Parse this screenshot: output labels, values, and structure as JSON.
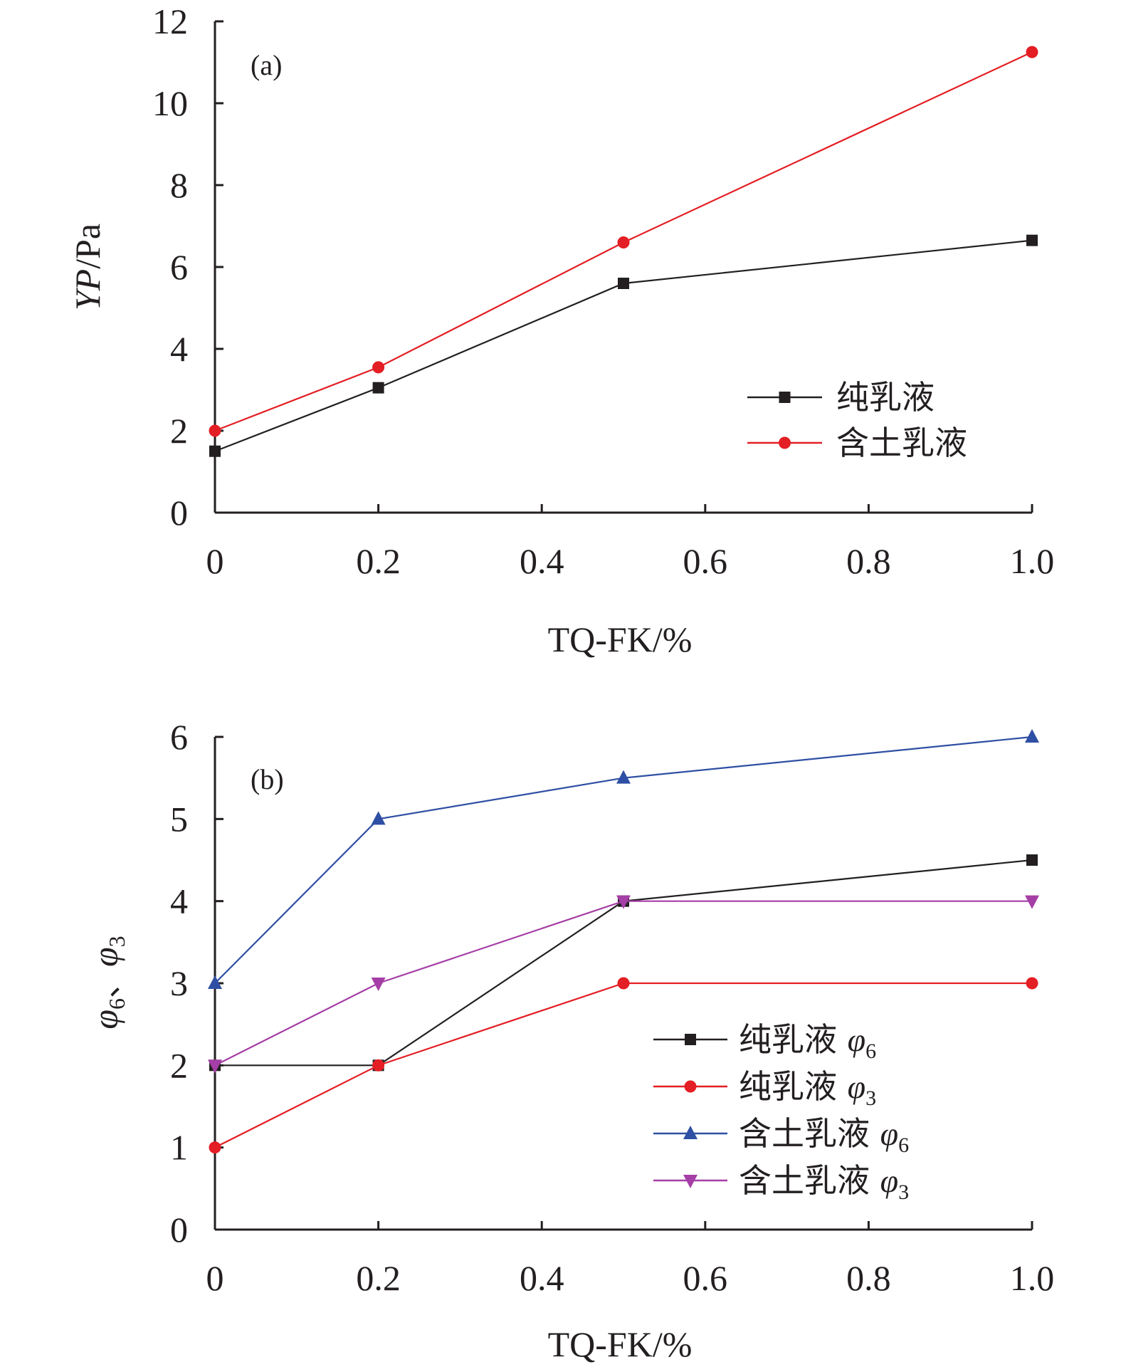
{
  "chart_data": [
    {
      "type": "line",
      "panel_label": "(a)",
      "xlabel": "TQ-FK/%",
      "ylabel": {
        "italic": "YP",
        "rest": "/Pa"
      },
      "xlim": [
        0,
        1.0
      ],
      "ylim": [
        0,
        12
      ],
      "x_ticks": [
        "0",
        "0.2",
        "0.4",
        "0.6",
        "0.8",
        "1.0"
      ],
      "y_ticks": [
        "0",
        "2",
        "4",
        "6",
        "8",
        "10",
        "12"
      ],
      "legend_position": "center-right",
      "series": [
        {
          "name": "纯乳液",
          "sym": "",
          "sub": "",
          "color": "#231f20",
          "marker": "square",
          "x": [
            0,
            0.2,
            0.5,
            1.0
          ],
          "values": [
            1.5,
            3.05,
            5.6,
            6.65
          ]
        },
        {
          "name": "含土乳液",
          "sym": "",
          "sub": "",
          "color": "#e31e24",
          "marker": "circle",
          "x": [
            0,
            0.2,
            0.5,
            1.0
          ],
          "values": [
            2.0,
            3.55,
            6.6,
            11.25
          ]
        }
      ]
    },
    {
      "type": "line",
      "panel_label": "(b)",
      "xlabel": "TQ-FK/%",
      "ylabel": {
        "parts": [
          {
            "t": "φ",
            "sub": "6"
          },
          {
            "t": "、",
            "sub": ""
          },
          {
            "t": "φ",
            "sub": "3"
          }
        ]
      },
      "xlim": [
        0,
        1.0
      ],
      "ylim": [
        0,
        6
      ],
      "x_ticks": [
        "0",
        "0.2",
        "0.4",
        "0.6",
        "0.8",
        "1.0"
      ],
      "y_ticks": [
        "0",
        "1",
        "2",
        "3",
        "4",
        "5",
        "6"
      ],
      "legend_position": "lower-right",
      "series": [
        {
          "name": "纯乳液",
          "sym": "φ",
          "sub": "6",
          "color": "#231f20",
          "marker": "square",
          "x": [
            0,
            0.2,
            0.5,
            1.0
          ],
          "values": [
            2,
            2,
            4,
            4.5
          ]
        },
        {
          "name": "纯乳液",
          "sym": "φ",
          "sub": "3",
          "color": "#e31e24",
          "marker": "circle",
          "x": [
            0,
            0.2,
            0.5,
            1.0
          ],
          "values": [
            1,
            2,
            3,
            3
          ]
        },
        {
          "name": "含土乳液",
          "sym": "φ",
          "sub": "6",
          "color": "#2e4fa3",
          "marker": "triangle-up",
          "x": [
            0,
            0.2,
            0.5,
            1.0
          ],
          "values": [
            3,
            5,
            5.5,
            6
          ]
        },
        {
          "name": "含土乳液",
          "sym": "φ",
          "sub": "3",
          "color": "#a53ea6",
          "marker": "triangle-down",
          "x": [
            0,
            0.2,
            0.5,
            1.0
          ],
          "values": [
            2,
            3,
            4,
            4
          ]
        }
      ]
    }
  ]
}
